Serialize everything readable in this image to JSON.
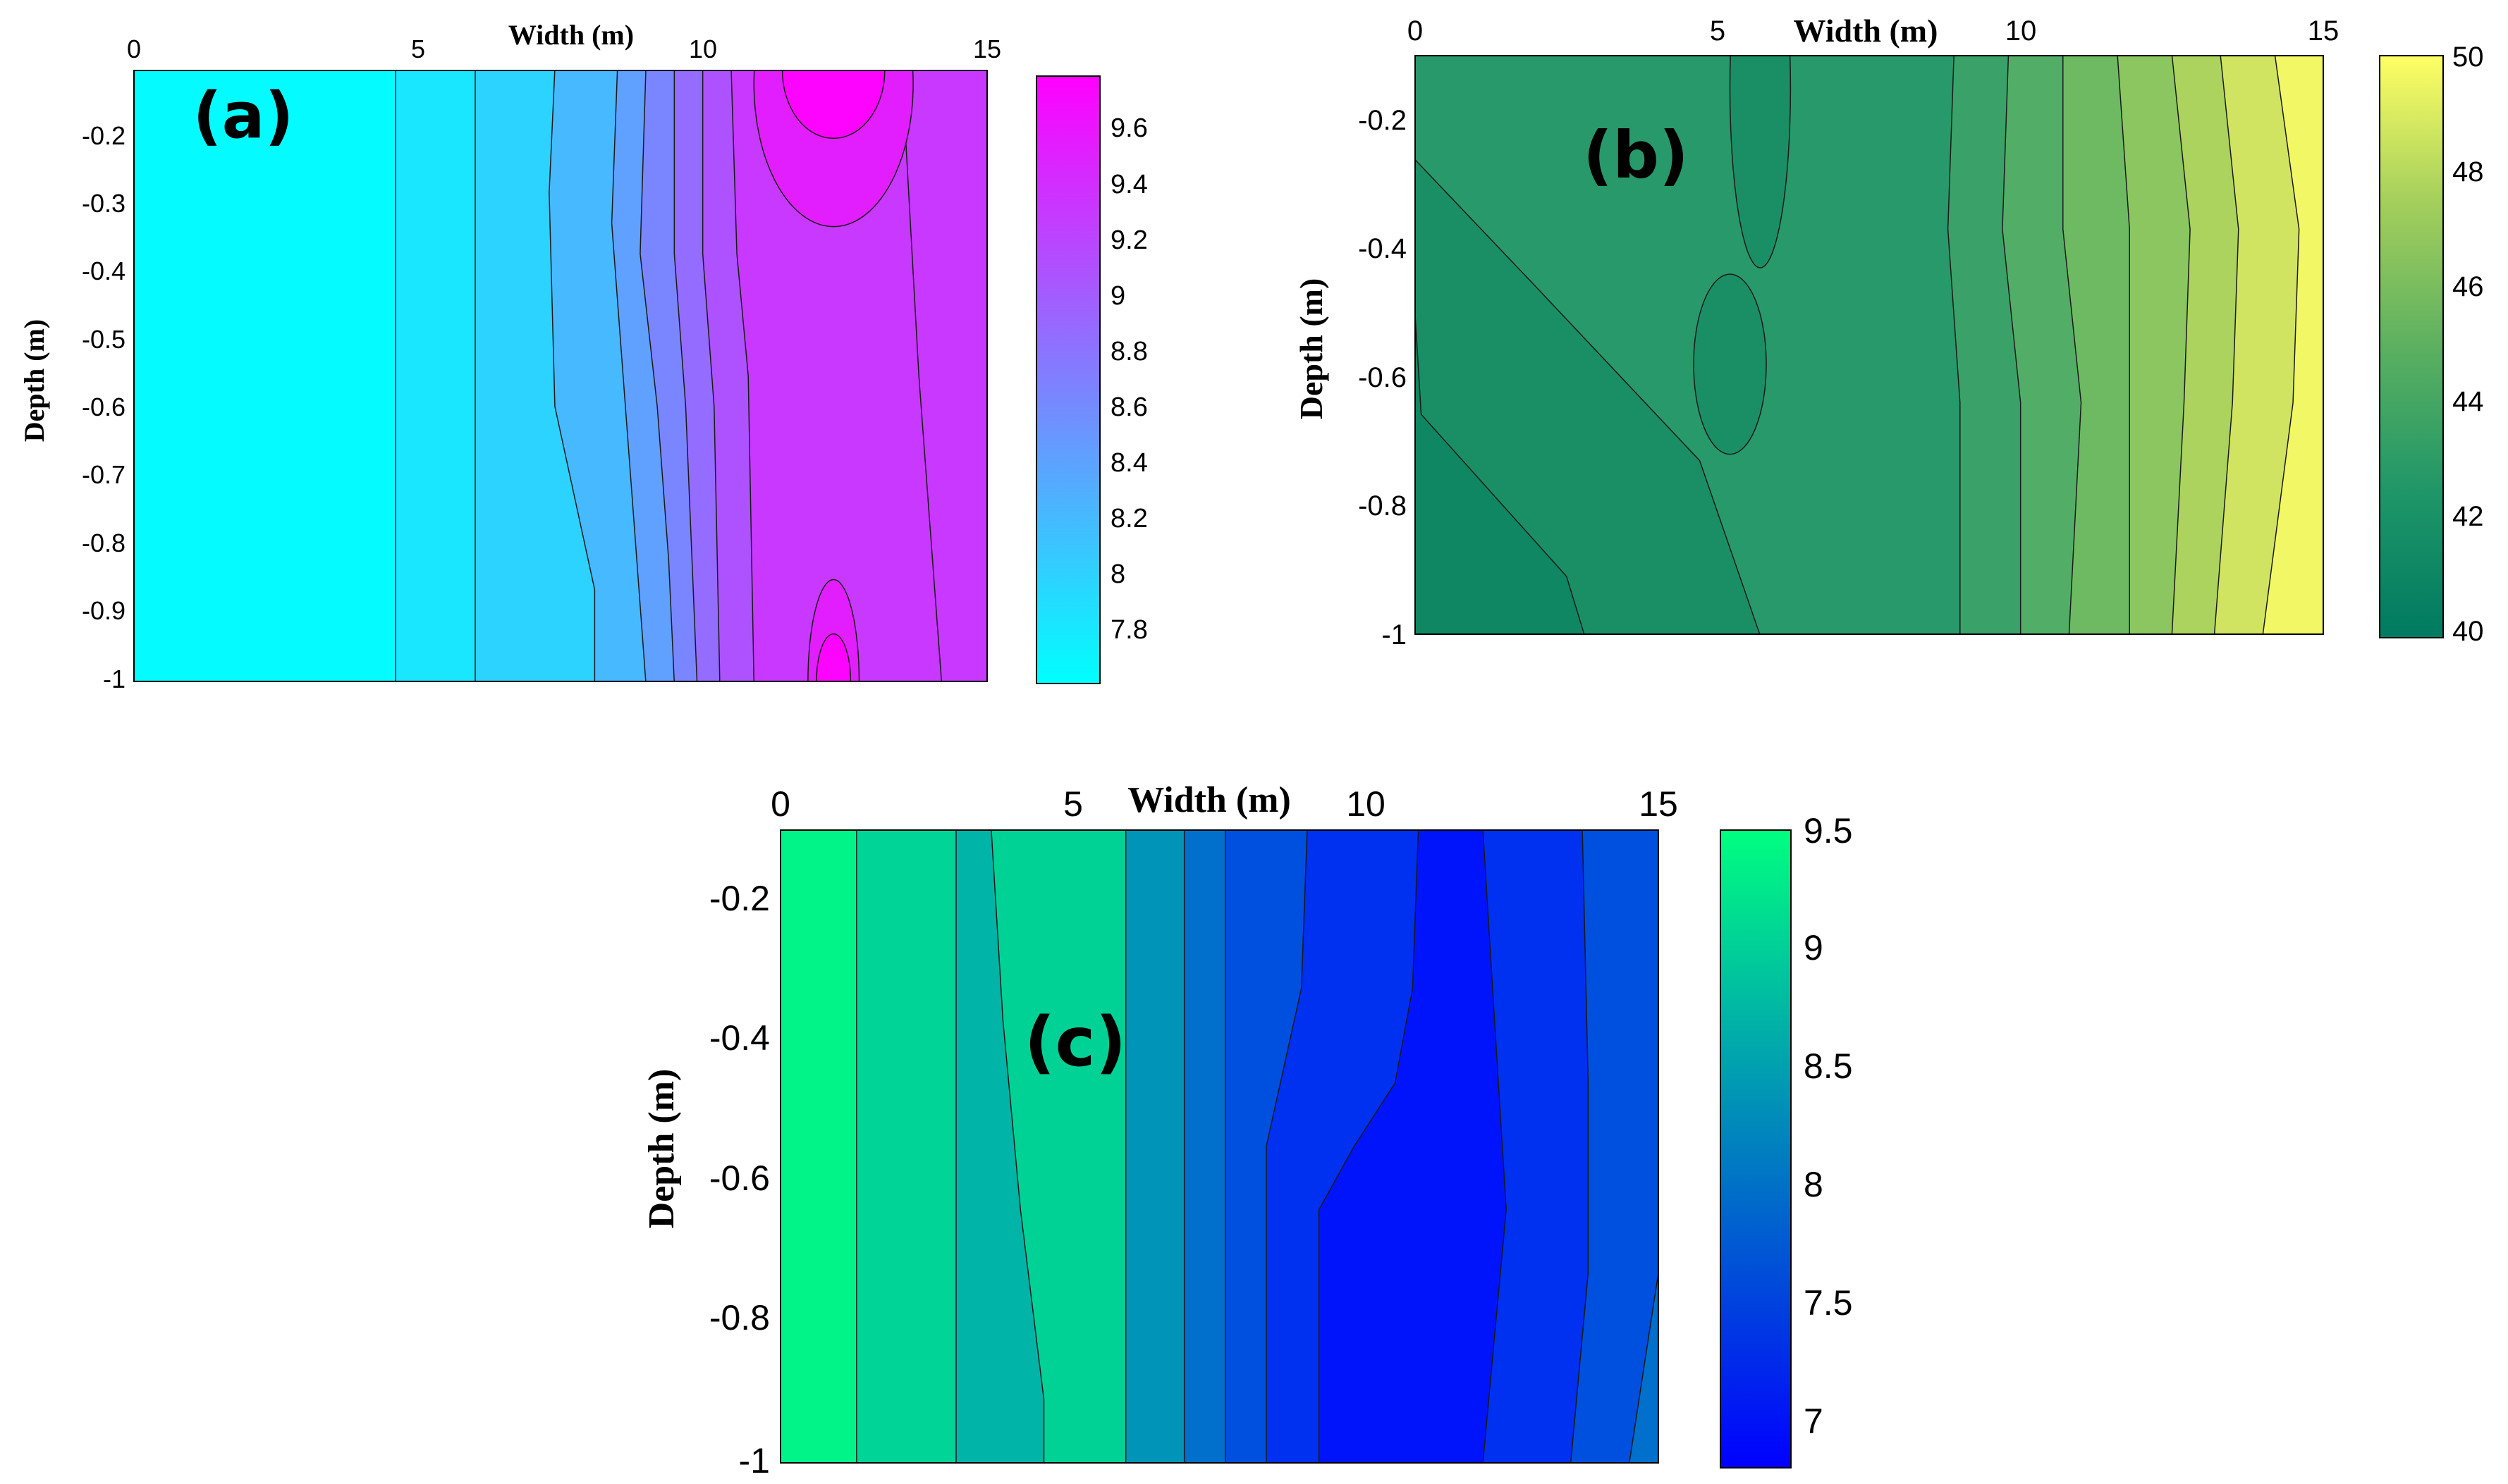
{
  "chart_data": [
    {
      "id": "a",
      "type": "contour",
      "panel_label": "(a)",
      "xlabel": "Width (m)",
      "ylabel": "Depth (m)",
      "xlim": [
        0,
        15
      ],
      "ylim": [
        -1,
        -0.1
      ],
      "xticks": [
        "0",
        "5",
        "10",
        "15"
      ],
      "yticks": [
        "-0.2",
        "-0.3",
        "-0.4",
        "-0.5",
        "-0.6",
        "-0.7",
        "-0.8",
        "-0.9",
        "-1"
      ],
      "colorbar": {
        "range": [
          7.62,
          9.8
        ],
        "ticks": [
          "9.6",
          "9.4",
          "9.2",
          "9",
          "8.8",
          "8.6",
          "8.4",
          "8.2",
          "8",
          "7.8"
        ],
        "colors": [
          "#00ffff",
          "#ff00ff"
        ]
      },
      "bands": [
        {
          "color": "#04fbff",
          "upper": [
            [
              0,
              4.6
            ],
            [
              1,
              4.6
            ]
          ]
        },
        {
          "color": "#18e7ff",
          "upper": [
            [
              0,
              6.0
            ],
            [
              1,
              6.0
            ]
          ]
        },
        {
          "color": "#2cd3ff",
          "upper": [
            [
              0,
              7.4
            ],
            [
              0.2,
              7.3
            ],
            [
              0.55,
              7.4
            ],
            [
              0.85,
              8.1
            ],
            [
              1,
              8.1
            ]
          ]
        },
        {
          "color": "#46b9ff",
          "upper": [
            [
              0,
              8.5
            ],
            [
              0.25,
              8.4
            ],
            [
              0.5,
              8.6
            ],
            [
              0.75,
              8.8
            ],
            [
              1,
              9.0
            ]
          ]
        },
        {
          "color": "#60a0ff",
          "upper": [
            [
              0,
              9.0
            ],
            [
              0.3,
              8.9
            ],
            [
              0.55,
              9.2
            ],
            [
              0.8,
              9.4
            ],
            [
              1,
              9.5
            ]
          ]
        },
        {
          "color": "#7a86ff",
          "upper": [
            [
              0,
              9.5
            ],
            [
              0.3,
              9.5
            ],
            [
              0.55,
              9.7
            ],
            [
              1,
              9.9
            ]
          ]
        },
        {
          "color": "#946cff",
          "upper": [
            [
              0,
              10.0
            ],
            [
              0.3,
              10.0
            ],
            [
              0.55,
              10.2
            ],
            [
              1,
              10.3
            ]
          ]
        },
        {
          "color": "#ae52ff",
          "upper": [
            [
              0,
              10.5
            ],
            [
              0.3,
              10.6
            ],
            [
              0.5,
              10.8
            ],
            [
              1,
              10.9
            ]
          ]
        },
        {
          "color": "#c838ff",
          "upper": [
            [
              0,
              15
            ],
            [
              1,
              15
            ]
          ]
        }
      ],
      "right_bands": [
        {
          "color": "#946cff",
          "lower": [
            [
              0,
              14.7
            ],
            [
              1,
              15
            ]
          ]
        },
        {
          "color": "#ae52ff",
          "lower": [
            [
              0,
              14.2
            ],
            [
              0.5,
              14.4
            ],
            [
              1,
              14.8
            ]
          ]
        },
        {
          "color": "#c838ff",
          "lower": [
            [
              0,
              13.5
            ],
            [
              0.5,
              13.8
            ],
            [
              1,
              14.2
            ]
          ]
        }
      ],
      "blobs": [
        {
          "color": "#e21eff",
          "cx": 12.3,
          "cy": -0.12,
          "rx": 1.4,
          "ry": 0.21
        },
        {
          "color": "#fc04ff",
          "cx": 12.3,
          "cy": -0.1,
          "rx": 0.9,
          "ry": 0.1
        },
        {
          "color": "#e21eff",
          "cx": 12.3,
          "cy": -1.0,
          "rx": 0.45,
          "ry": 0.15
        },
        {
          "color": "#fc04ff",
          "cx": 12.3,
          "cy": -1.0,
          "rx": 0.3,
          "ry": 0.07
        }
      ]
    },
    {
      "id": "b",
      "type": "contour",
      "panel_label": "(b)",
      "xlabel": "Width (m)",
      "ylabel": "Depth (m)",
      "xlim": [
        0,
        15
      ],
      "ylim": [
        -1,
        -0.1
      ],
      "xticks": [
        "0",
        "5",
        "10",
        "15"
      ],
      "yticks": [
        "-0.2",
        "-0.4",
        "-0.6",
        "-0.8",
        "-1"
      ],
      "colorbar": {
        "range": [
          40,
          50
        ],
        "ticks": [
          "50",
          "48",
          "46",
          "44",
          "42",
          "40"
        ],
        "colors": [
          "#007a60",
          "#1f9668",
          "#5cb060",
          "#a4cf5c",
          "#ffff64"
        ]
      },
      "bands": [
        {
          "color": "#0e8762",
          "upper": [
            [
              0,
              0.001
            ],
            [
              0.45,
              0.001
            ],
            [
              0.62,
              0.1
            ],
            [
              0.9,
              2.5
            ],
            [
              1,
              2.8
            ]
          ]
        },
        {
          "color": "#1a8f66",
          "upper": [
            [
              0,
              0.001
            ],
            [
              0.18,
              0.001
            ],
            [
              0.4,
              2.0
            ],
            [
              0.7,
              4.7
            ],
            [
              1,
              5.7
            ]
          ]
        },
        {
          "color": "#28996a",
          "upper": [
            [
              0,
              8.9
            ],
            [
              0.3,
              8.8
            ],
            [
              0.6,
              9.0
            ],
            [
              1,
              9.0
            ]
          ]
        },
        {
          "color": "#3aa268",
          "upper": [
            [
              0,
              9.8
            ],
            [
              0.3,
              9.7
            ],
            [
              0.6,
              10.0
            ],
            [
              1,
              10.0
            ]
          ]
        },
        {
          "color": "#52ae66",
          "upper": [
            [
              0,
              10.7
            ],
            [
              0.3,
              10.7
            ],
            [
              0.6,
              11.0
            ],
            [
              1,
              10.8
            ]
          ]
        },
        {
          "color": "#6dba62",
          "upper": [
            [
              0,
              11.6
            ],
            [
              0.3,
              11.8
            ],
            [
              0.6,
              11.8
            ],
            [
              1,
              11.8
            ]
          ]
        },
        {
          "color": "#8bc660",
          "upper": [
            [
              0,
              12.5
            ],
            [
              0.3,
              12.8
            ],
            [
              0.6,
              12.7
            ],
            [
              1,
              12.5
            ]
          ]
        },
        {
          "color": "#abd35e",
          "upper": [
            [
              0,
              13.3
            ],
            [
              0.3,
              13.6
            ],
            [
              0.6,
              13.5
            ],
            [
              1,
              13.2
            ]
          ]
        },
        {
          "color": "#d0e462",
          "upper": [
            [
              0,
              14.2
            ],
            [
              0.3,
              14.6
            ],
            [
              0.6,
              14.5
            ],
            [
              1,
              14.0
            ]
          ]
        },
        {
          "color": "#f2f766",
          "upper": [
            [
              0,
              15
            ],
            [
              1,
              15
            ]
          ]
        }
      ],
      "right_bands": [],
      "blobs": [
        {
          "color": "#1a8f66",
          "cx": 5.7,
          "cy": -0.15,
          "rx": 0.5,
          "ry": 0.28
        },
        {
          "color": "#1a8f66",
          "cx": 5.2,
          "cy": -0.58,
          "rx": 0.6,
          "ry": 0.14
        }
      ]
    },
    {
      "id": "c",
      "type": "contour",
      "panel_label": "(c)",
      "xlabel": "Width (m)",
      "ylabel": "Depth (m)",
      "xlim": [
        0,
        15
      ],
      "ylim": [
        -1,
        -0.1
      ],
      "xticks": [
        "0",
        "5",
        "10",
        "15"
      ],
      "yticks": [
        "-0.2",
        "-0.4",
        "-0.6",
        "-0.8",
        "-1"
      ],
      "colorbar": {
        "range": [
          6.8,
          9.5
        ],
        "ticks": [
          "9.5",
          "9",
          "8.5",
          "8",
          "7.5",
          "7"
        ],
        "colors": [
          "#0000ff",
          "#00ff80"
        ]
      },
      "bands": [
        {
          "color": "#00f487",
          "upper": [
            [
              0,
              1.3
            ],
            [
              1,
              1.3
            ]
          ]
        },
        {
          "color": "#00d496",
          "upper": [
            [
              0,
              3.0
            ],
            [
              1,
              3.0
            ]
          ]
        },
        {
          "color": "#00b4a8",
          "upper": [
            [
              0,
              3.6
            ],
            [
              0.3,
              3.8
            ],
            [
              0.6,
              4.1
            ],
            [
              0.9,
              4.5
            ],
            [
              1,
              4.5
            ]
          ]
        },
        {
          "color": "#00d296",
          "upper": [
            [
              0,
              5.9
            ],
            [
              1,
              5.9
            ]
          ]
        },
        {
          "color": "#0094b8",
          "upper": [
            [
              0,
              6.9
            ],
            [
              1,
              6.9
            ]
          ]
        },
        {
          "color": "#0070cc",
          "upper": [
            [
              0,
              7.6
            ],
            [
              1,
              7.6
            ]
          ]
        },
        {
          "color": "#0050e0",
          "upper": [
            [
              0,
              9.0
            ],
            [
              0.25,
              8.9
            ],
            [
              0.5,
              8.3
            ],
            [
              0.8,
              8.3
            ],
            [
              1,
              8.3
            ]
          ]
        },
        {
          "color": "#0030f0",
          "upper": [
            [
              0,
              10.9
            ],
            [
              0.25,
              10.8
            ],
            [
              0.4,
              10.5
            ],
            [
              0.5,
              9.8
            ],
            [
              0.6,
              9.2
            ],
            [
              1,
              9.2
            ]
          ]
        },
        {
          "color": "#0014fc",
          "upper": [
            [
              0,
              12.0
            ],
            [
              0.3,
              12.2
            ],
            [
              0.6,
              12.4
            ],
            [
              0.8,
              12.2
            ],
            [
              1,
              12.0
            ]
          ]
        },
        {
          "color": "#0030f0",
          "upper": [
            [
              0,
              13.7
            ],
            [
              0.4,
              13.8
            ],
            [
              0.7,
              13.8
            ],
            [
              1,
              13.5
            ]
          ]
        },
        {
          "color": "#0050e0",
          "upper": [
            [
              0,
              15
            ],
            [
              1,
              15
            ]
          ]
        }
      ],
      "right_bands": [
        {
          "color": "#0070cc",
          "lower": [
            [
              0,
              15
            ],
            [
              0.7,
              15
            ],
            [
              1,
              14.5
            ]
          ]
        }
      ],
      "blobs": []
    }
  ]
}
